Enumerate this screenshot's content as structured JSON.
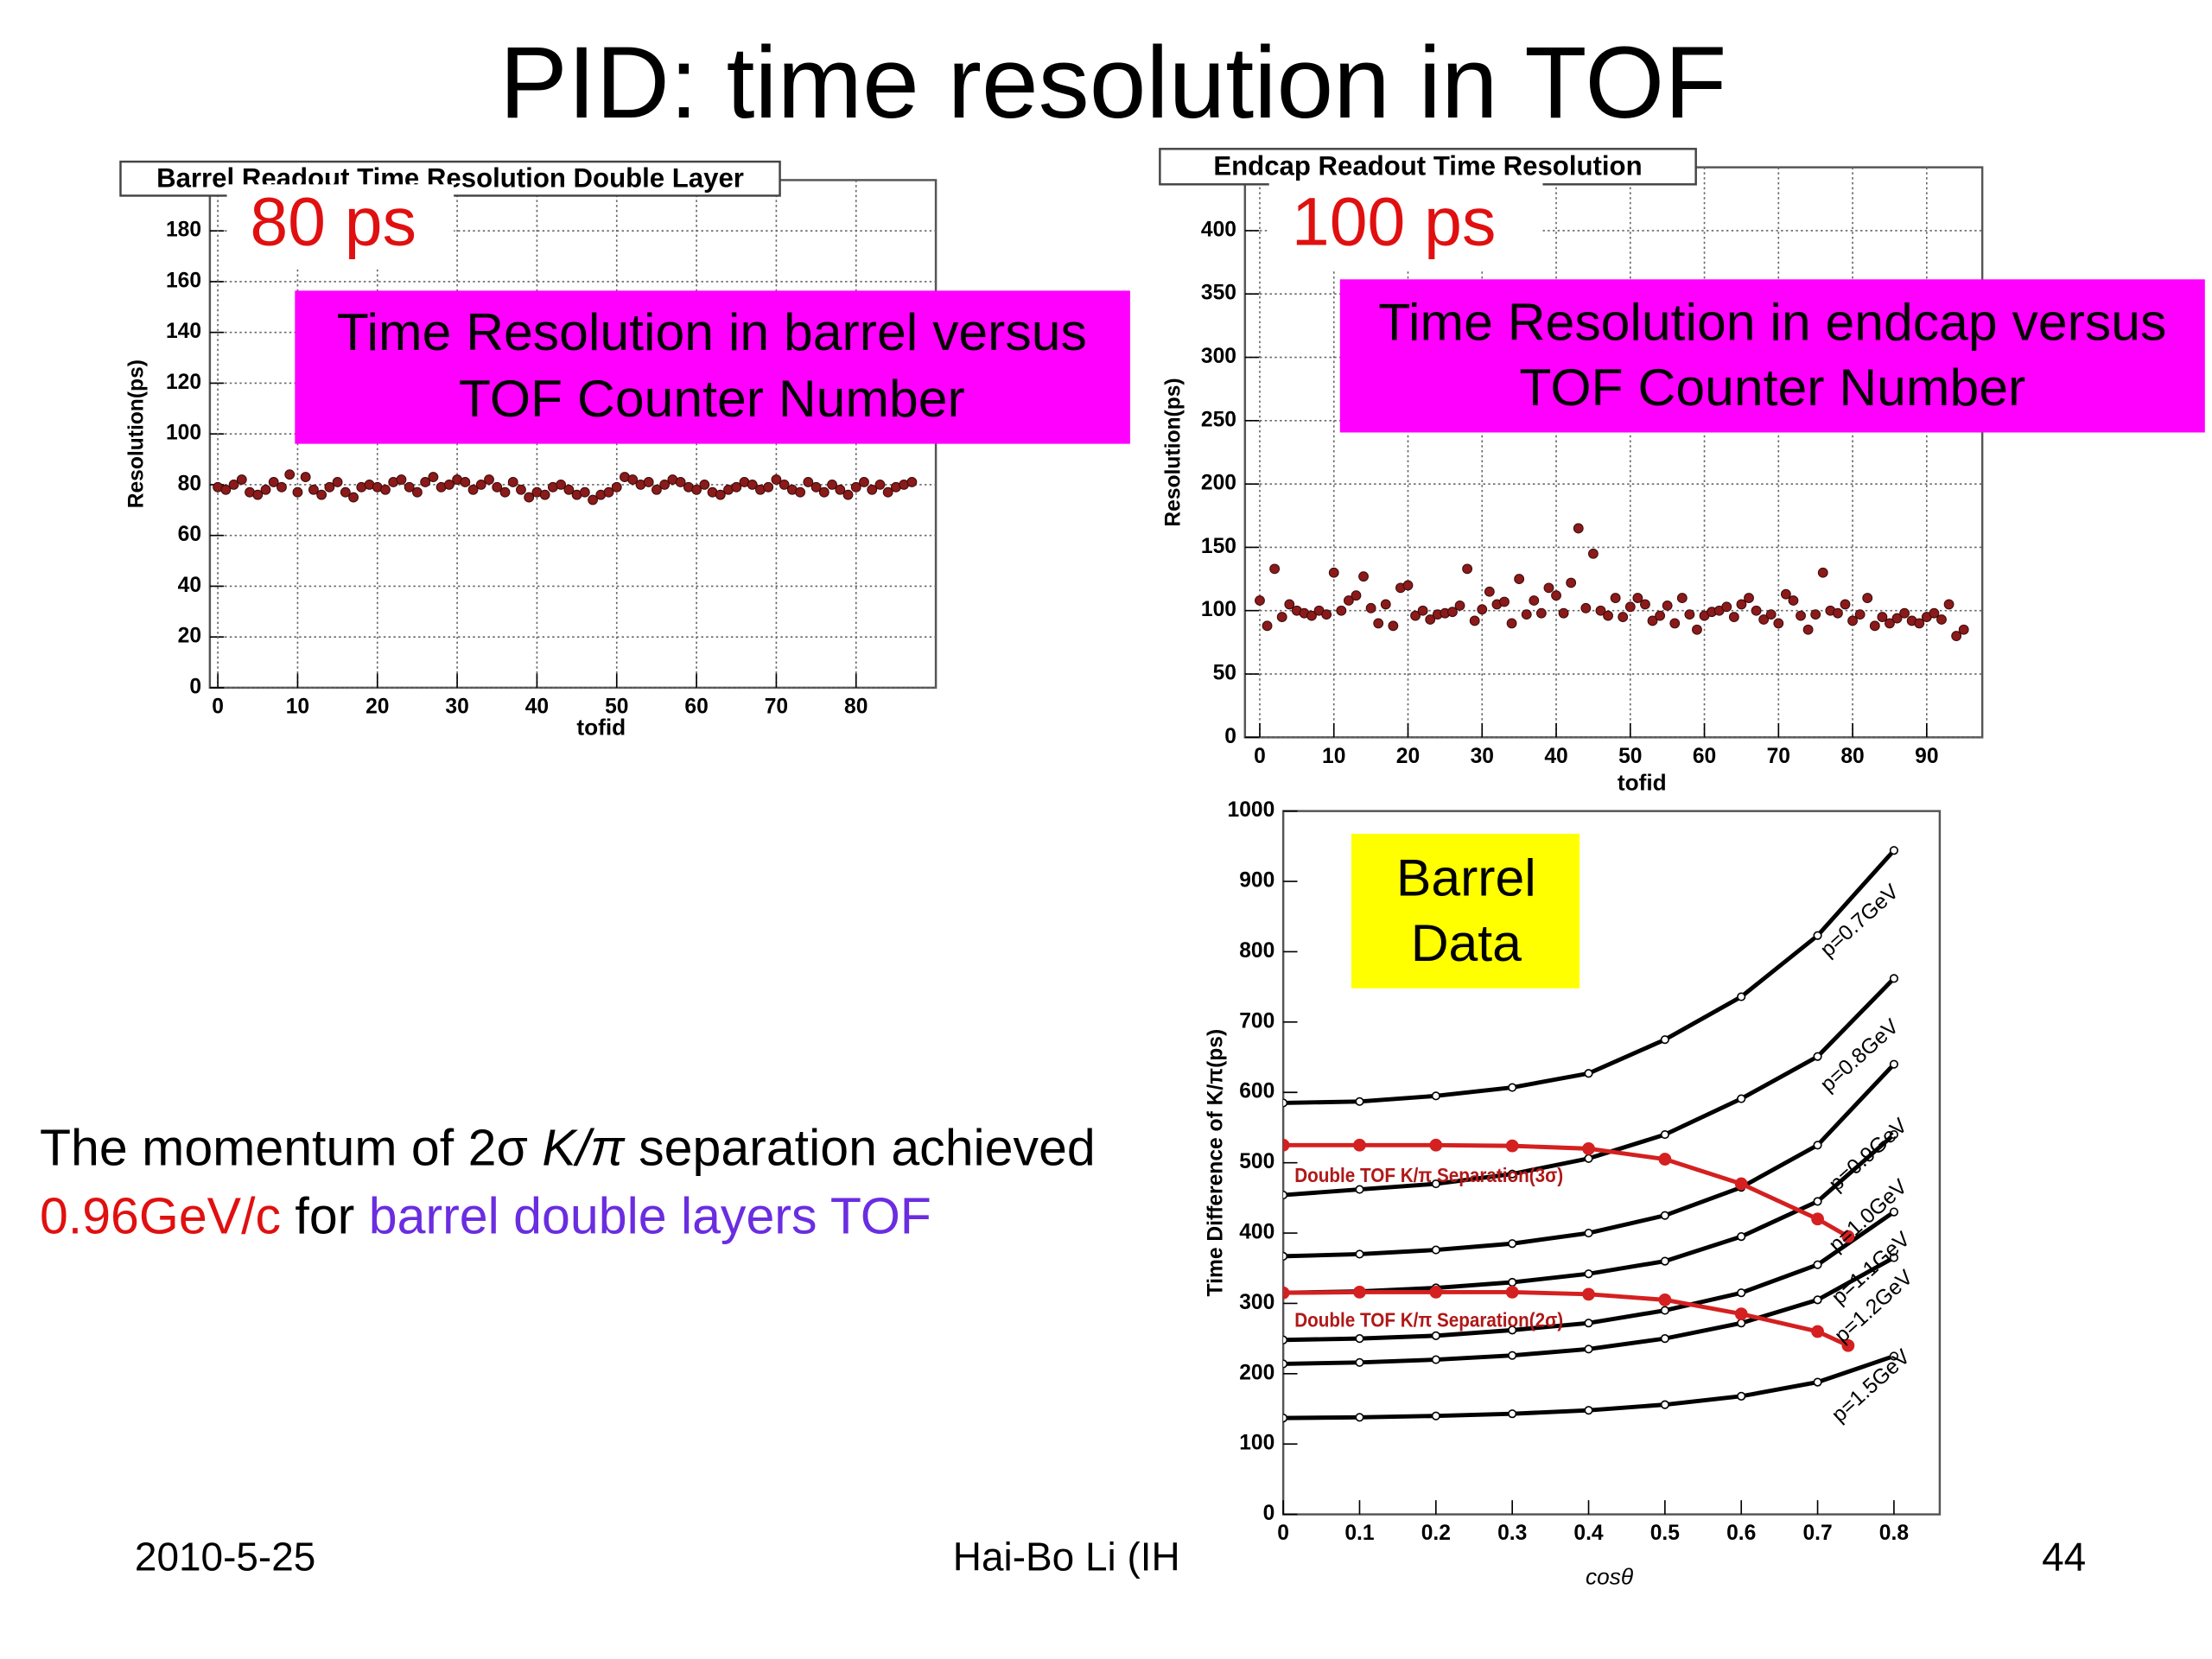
{
  "slide": {
    "title": "PID: time resolution in TOF",
    "text": {
      "line1": [
        "The momentum of 2σ ",
        "K/π",
        " separation achieved"
      ],
      "line2": [
        "0.96GeV/c",
        " for ",
        "barrel double  layers TOF"
      ]
    },
    "footer": {
      "date": "2010-5-25",
      "author": "Hai-Bo Li (IH",
      "page": "44"
    }
  },
  "chart_data": [
    {
      "type": "scatter",
      "title": "Barrel Readout Time Resolution Double Layer",
      "label": "80 ps",
      "callout": [
        "Time Resolution in barrel versus",
        "TOF Counter Number"
      ],
      "x_label": "tofid",
      "y_label": "Resolution(ps)",
      "xlim": [
        -1,
        90
      ],
      "ylim": [
        0,
        200
      ],
      "xticks": [
        0,
        10,
        20,
        30,
        40,
        50,
        60,
        70,
        80
      ],
      "yticks": [
        0,
        20,
        40,
        60,
        80,
        100,
        120,
        140,
        160,
        180
      ],
      "grid": true,
      "series": [
        {
          "color": "#8b1a1a",
          "x": [
            0,
            1,
            2,
            3,
            4,
            5,
            6,
            7,
            8,
            9,
            10,
            11,
            12,
            13,
            14,
            15,
            16,
            17,
            18,
            19,
            20,
            21,
            22,
            23,
            24,
            25,
            26,
            27,
            28,
            29,
            30,
            31,
            32,
            33,
            34,
            35,
            36,
            37,
            38,
            39,
            40,
            41,
            42,
            43,
            44,
            45,
            46,
            47,
            48,
            49,
            50,
            51,
            52,
            53,
            54,
            55,
            56,
            57,
            58,
            59,
            60,
            61,
            62,
            63,
            64,
            65,
            66,
            67,
            68,
            69,
            70,
            71,
            72,
            73,
            74,
            75,
            76,
            77,
            78,
            79,
            80,
            81,
            82,
            83,
            84,
            85,
            86,
            87
          ],
          "values": [
            79,
            78,
            80,
            82,
            77,
            76,
            78,
            81,
            79,
            84,
            77,
            83,
            78,
            76,
            79,
            81,
            77,
            75,
            79,
            80,
            79,
            78,
            81,
            82,
            79,
            77,
            81,
            83,
            79,
            80,
            82,
            81,
            78,
            80,
            82,
            79,
            77,
            81,
            78,
            75,
            77,
            76,
            79,
            80,
            78,
            76,
            77,
            74,
            76,
            77,
            79,
            83,
            82,
            80,
            81,
            78,
            80,
            82,
            81,
            79,
            78,
            80,
            77,
            76,
            78,
            79,
            81,
            80,
            78,
            79,
            82,
            80,
            78,
            77,
            81,
            79,
            77,
            80,
            78,
            76,
            79,
            81,
            78,
            80,
            77,
            79,
            80,
            81
          ]
        }
      ]
    },
    {
      "type": "scatter",
      "title": "Endcap Readout Time Resolution",
      "label": "100 ps",
      "callout": [
        "Time Resolution in endcap versus",
        "TOF Counter Number"
      ],
      "x_label": "tofid",
      "y_label": "Resolution(ps)",
      "xlim": [
        -2,
        97.5
      ],
      "ylim": [
        0,
        450
      ],
      "xticks": [
        0,
        10,
        20,
        30,
        40,
        50,
        60,
        70,
        80,
        90
      ],
      "yticks": [
        0,
        50,
        100,
        150,
        200,
        250,
        300,
        350,
        400
      ],
      "grid": true,
      "series": [
        {
          "color": "#8b1a1a",
          "x": [
            0,
            1,
            2,
            3,
            4,
            5,
            6,
            7,
            8,
            9,
            10,
            11,
            12,
            13,
            14,
            15,
            16,
            17,
            18,
            19,
            20,
            21,
            22,
            23,
            24,
            25,
            26,
            27,
            28,
            29,
            30,
            31,
            32,
            33,
            34,
            35,
            36,
            37,
            38,
            39,
            40,
            41,
            42,
            43,
            44,
            45,
            46,
            47,
            48,
            49,
            50,
            51,
            52,
            53,
            54,
            55,
            56,
            57,
            58,
            59,
            60,
            61,
            62,
            63,
            64,
            65,
            66,
            67,
            68,
            69,
            70,
            71,
            72,
            73,
            74,
            75,
            76,
            77,
            78,
            79,
            80,
            81,
            82,
            83,
            84,
            85,
            86,
            87,
            88,
            89,
            90,
            91,
            92,
            93,
            94,
            95
          ],
          "values": [
            108,
            88,
            133,
            95,
            105,
            100,
            98,
            96,
            100,
            97,
            130,
            100,
            108,
            112,
            127,
            102,
            90,
            105,
            88,
            118,
            120,
            96,
            100,
            93,
            97,
            98,
            99,
            104,
            133,
            92,
            101,
            115,
            105,
            107,
            90,
            125,
            97,
            108,
            98,
            118,
            112,
            98,
            122,
            165,
            102,
            145,
            100,
            96,
            110,
            95,
            103,
            110,
            105,
            92,
            96,
            104,
            90,
            110,
            97,
            85,
            96,
            99,
            100,
            103,
            95,
            105,
            110,
            100,
            93,
            97,
            90,
            113,
            108,
            96,
            85,
            97,
            130,
            100,
            98,
            105,
            92,
            97,
            110,
            88,
            95,
            90,
            94,
            98,
            92,
            90,
            95,
            98,
            93,
            105,
            80,
            85
          ]
        }
      ]
    },
    {
      "type": "line",
      "callout": [
        "Barrel",
        "Data"
      ],
      "x_label": "cosθ",
      "y_label": "Time Difference of K/π(ps)",
      "xlim": [
        0,
        0.86
      ],
      "ylim": [
        0,
        1000
      ],
      "xticks": [
        0,
        0.1,
        0.2,
        0.3,
        0.4,
        0.5,
        0.6,
        0.7,
        0.8
      ],
      "yticks": [
        0,
        100,
        200,
        300,
        400,
        500,
        600,
        700,
        800,
        900,
        1000
      ],
      "grid": false,
      "series": [
        {
          "name": "p=0.7GeV",
          "color": "#000000",
          "x": [
            0,
            0.1,
            0.2,
            0.3,
            0.4,
            0.5,
            0.6,
            0.7,
            0.8
          ],
          "values": [
            585,
            587,
            595,
            607,
            627,
            675,
            736,
            823,
            944
          ]
        },
        {
          "name": "p=0.8GeV",
          "color": "#000000",
          "x": [
            0,
            0.1,
            0.2,
            0.3,
            0.4,
            0.5,
            0.6,
            0.7,
            0.8
          ],
          "values": [
            454,
            462,
            470,
            484,
            506,
            540,
            591,
            651,
            762
          ]
        },
        {
          "name": "p=0.9GeV",
          "color": "#000000",
          "x": [
            0,
            0.1,
            0.2,
            0.3,
            0.4,
            0.5,
            0.6,
            0.7,
            0.8
          ],
          "values": [
            367,
            370,
            376,
            385,
            400,
            425,
            465,
            525,
            640
          ]
        },
        {
          "name": "p=1.0GeV",
          "color": "#000000",
          "x": [
            0,
            0.1,
            0.2,
            0.3,
            0.4,
            0.5,
            0.6,
            0.7,
            0.8
          ],
          "values": [
            315,
            317,
            322,
            330,
            342,
            360,
            395,
            445,
            540
          ]
        },
        {
          "name": "p=1.1GeV",
          "color": "#000000",
          "x": [
            0,
            0.1,
            0.2,
            0.3,
            0.4,
            0.5,
            0.6,
            0.7,
            0.8
          ],
          "values": [
            248,
            250,
            254,
            262,
            272,
            290,
            315,
            355,
            430
          ]
        },
        {
          "name": "p=1.2GeV",
          "color": "#000000",
          "x": [
            0,
            0.1,
            0.2,
            0.3,
            0.4,
            0.5,
            0.6,
            0.7,
            0.8
          ],
          "values": [
            214,
            216,
            220,
            226,
            235,
            250,
            272,
            305,
            365
          ]
        },
        {
          "name": "p=1.5GeV",
          "color": "#000000",
          "x": [
            0,
            0.1,
            0.2,
            0.3,
            0.4,
            0.5,
            0.6,
            0.7,
            0.8
          ],
          "values": [
            137,
            138,
            140,
            143,
            148,
            156,
            168,
            188,
            225
          ]
        },
        {
          "name": "Double TOF K/π Separation(3σ)",
          "color": "#d42020",
          "x": [
            0,
            0.1,
            0.2,
            0.3,
            0.4,
            0.5,
            0.6,
            0.7,
            0.74
          ],
          "values": [
            525,
            525,
            525,
            524,
            520,
            505,
            470,
            420,
            395
          ]
        },
        {
          "name": "Double TOF K/π Separation(2σ)",
          "color": "#d42020",
          "x": [
            0,
            0.1,
            0.2,
            0.3,
            0.4,
            0.5,
            0.6,
            0.7,
            0.74
          ],
          "values": [
            315,
            316,
            316,
            316,
            313,
            305,
            285,
            260,
            240
          ]
        }
      ]
    }
  ]
}
